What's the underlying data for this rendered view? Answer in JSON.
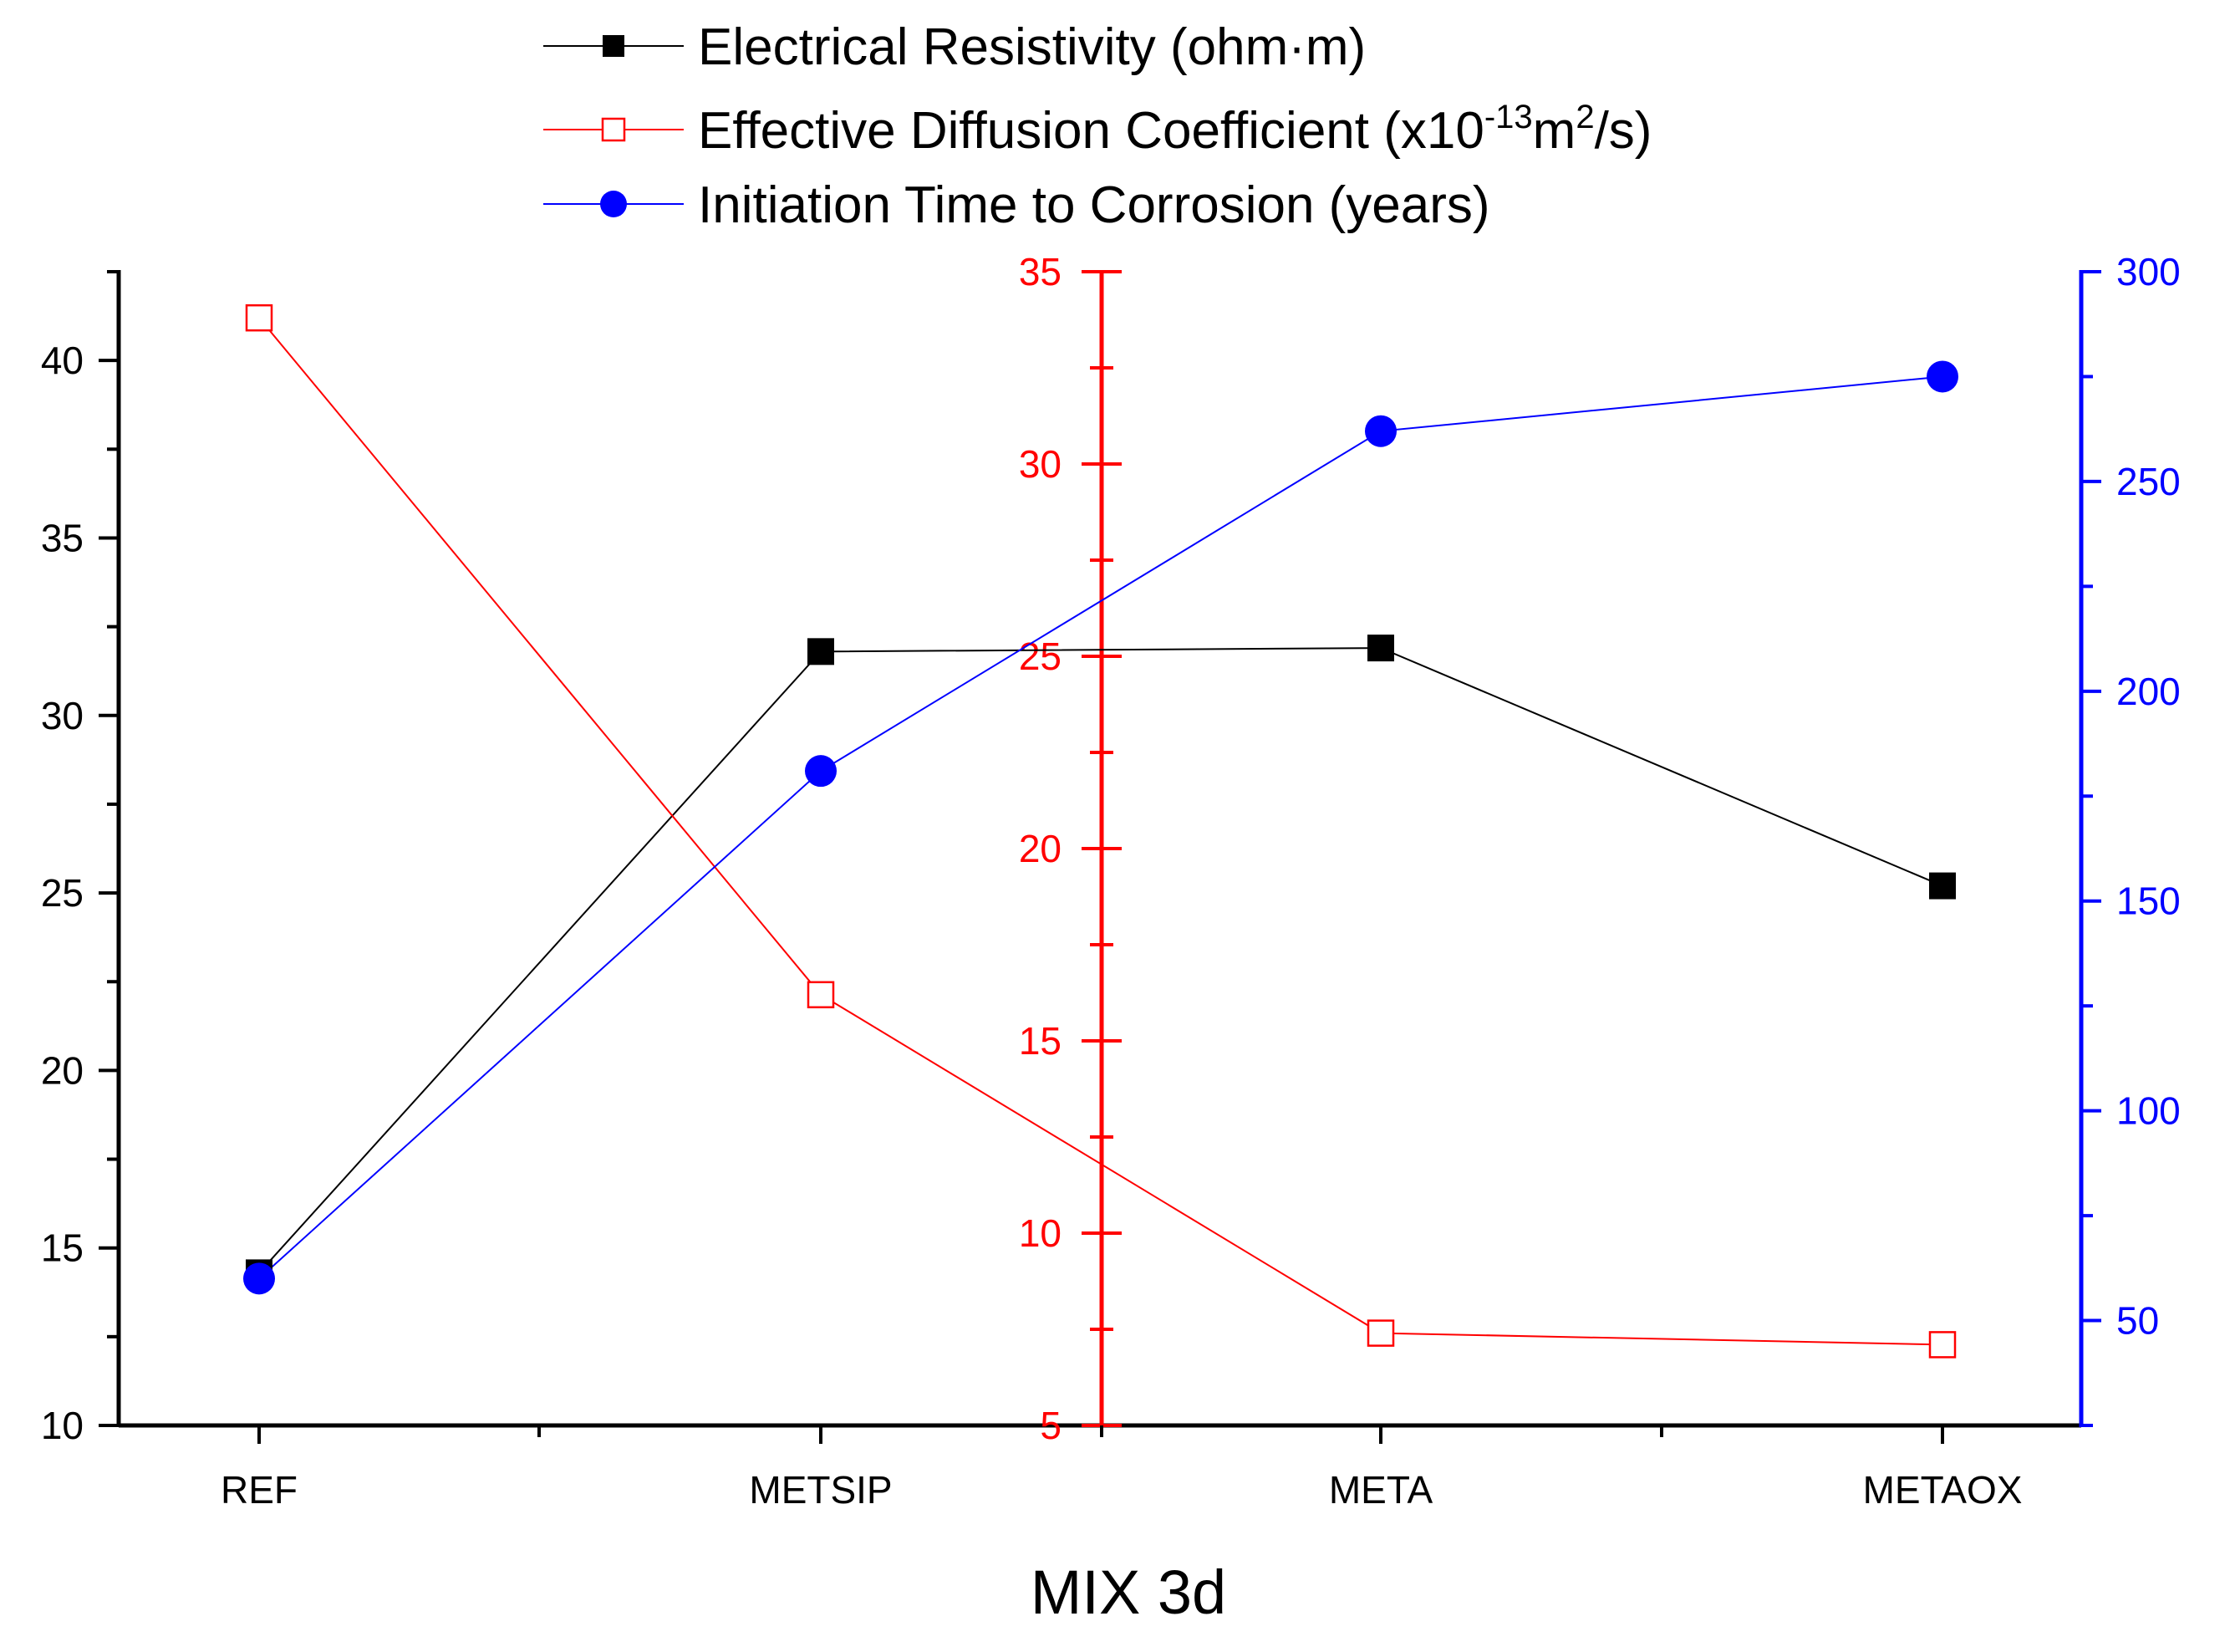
{
  "chart_data": {
    "type": "line",
    "title": "",
    "xlabel": "MIX 3d",
    "categories": [
      "REF",
      "METSIP",
      "META",
      "METAOX"
    ],
    "series": [
      {
        "name": "Electrical Resistivity (ohm·m)",
        "axis": "left",
        "color": "#000000",
        "marker": "filled-square",
        "values": [
          14.3,
          31.8,
          31.9,
          25.2
        ]
      },
      {
        "name": "Effective Diffusion Coefficient",
        "axis": "middle",
        "color": "#ff0000",
        "marker": "open-square",
        "values": [
          33.8,
          16.2,
          7.4,
          7.1
        ]
      },
      {
        "name": "Initiation Time to Corrosion (years)",
        "axis": "right",
        "color": "#0000ff",
        "marker": "filled-circle",
        "values": [
          60,
          181,
          262,
          275
        ]
      }
    ],
    "legend": {
      "placement": "top-center",
      "entries": [
        "Electrical Resistivity (ohm·m)",
        "Effective Diffusion Coefficient (x10",
        "Initiation Time to Corrosion (years)"
      ],
      "diffusion_unit": {
        "exp1": "-13",
        "mid": "m",
        "exp2": "2",
        "end": "/s)"
      }
    },
    "axes": {
      "left": {
        "ylim": [
          10,
          42.5
        ],
        "ticks": [
          "10",
          "15",
          "20",
          "25",
          "30",
          "35",
          "40"
        ],
        "color": "#000000"
      },
      "middle": {
        "ylim": [
          5,
          35
        ],
        "ticks": [
          "5",
          "10",
          "15",
          "20",
          "25",
          "30",
          "35"
        ],
        "color": "#ff0000"
      },
      "right": {
        "ylim": [
          25,
          300
        ],
        "ticks": [
          "50",
          "100",
          "150",
          "200",
          "250",
          "300"
        ],
        "color": "#0000ff"
      }
    },
    "grid": false
  }
}
